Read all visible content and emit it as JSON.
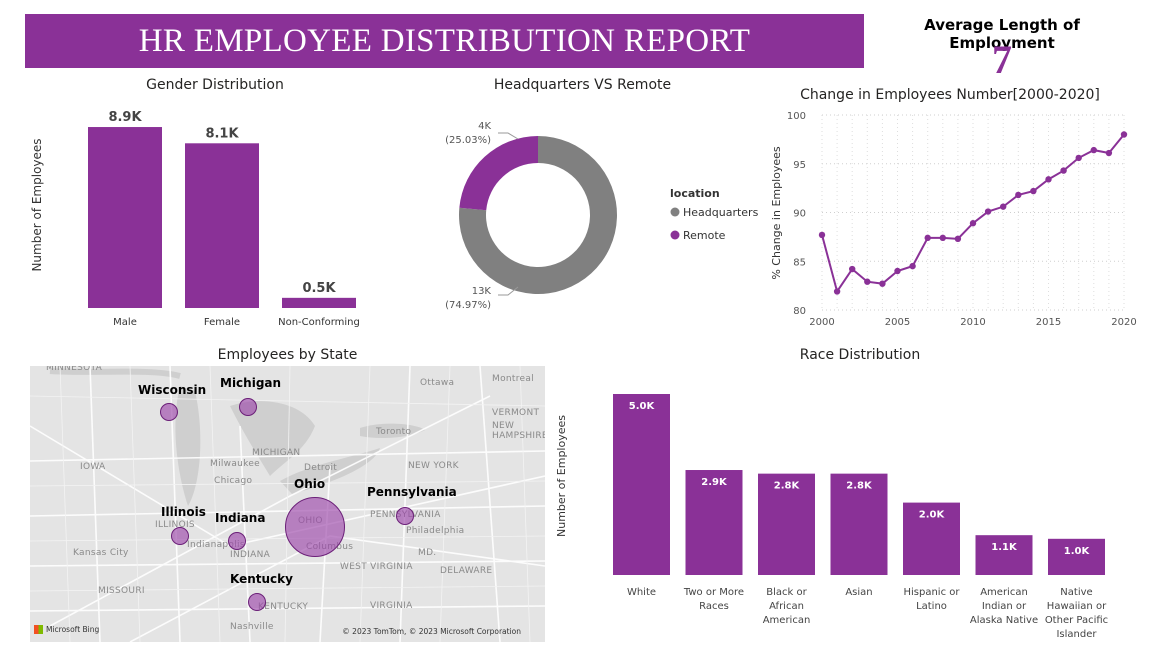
{
  "header": {
    "title": "HR EMPLOYEE DISTRIBUTION REPORT"
  },
  "kpi": {
    "label": "Average Length of Employment",
    "value": "7"
  },
  "colors": {
    "accent": "#8a3197",
    "secondary": "#808080"
  },
  "chart_data": [
    {
      "id": "gender",
      "type": "bar",
      "title": "Gender Distribution",
      "ylabel": "Number of Employees",
      "xlabel": "",
      "categories": [
        "Male",
        "Female",
        "Non-Conforming"
      ],
      "values": [
        8.9,
        8.1,
        0.5
      ],
      "data_labels": [
        "8.9K",
        "8.1K",
        "0.5K"
      ],
      "unit": "K"
    },
    {
      "id": "location",
      "type": "pie",
      "variant": "donut",
      "title": "Headquarters VS Remote",
      "legend_title": "location",
      "legend_position": "right",
      "slices": [
        {
          "name": "Headquarters",
          "value": 13,
          "label": "13K",
          "percent": "(74.97%)",
          "color": "#808080"
        },
        {
          "name": "Remote",
          "value": 4,
          "label": "4K",
          "percent": "(25.03%)",
          "color": "#8a3197"
        }
      ]
    },
    {
      "id": "change",
      "type": "line",
      "title": "Change in Employees Number[2000-2020]",
      "ylabel": "% Change in Employees",
      "xlabel": "",
      "x": [
        2000,
        2001,
        2002,
        2003,
        2004,
        2005,
        2006,
        2007,
        2008,
        2009,
        2010,
        2011,
        2012,
        2013,
        2014,
        2015,
        2016,
        2017,
        2018,
        2019,
        2020
      ],
      "y": [
        87.7,
        81.9,
        84.2,
        82.9,
        82.7,
        84.0,
        84.5,
        87.4,
        87.4,
        87.3,
        88.9,
        90.1,
        90.6,
        91.8,
        92.2,
        93.4,
        94.3,
        95.6,
        96.4,
        96.1,
        98.0
      ],
      "xlim": [
        2000,
        2020
      ],
      "ylim": [
        80,
        100
      ],
      "xticks": [
        2000,
        2005,
        2010,
        2015,
        2020
      ],
      "yticks": [
        80,
        85,
        90,
        95,
        100
      ],
      "grid": true
    },
    {
      "id": "race",
      "type": "bar",
      "title": "Race Distribution",
      "ylabel": "Number of Employees",
      "xlabel": "",
      "categories": [
        [
          "White"
        ],
        [
          "Two or More",
          "Races"
        ],
        [
          "Black or",
          "African",
          "American"
        ],
        [
          "Asian"
        ],
        [
          "Hispanic or",
          "Latino"
        ],
        [
          "American",
          "Indian or",
          "Alaska Native"
        ],
        [
          "Native",
          "Hawaiian or",
          "Other Pacific",
          "Islander"
        ]
      ],
      "values": [
        5.0,
        2.9,
        2.8,
        2.8,
        2.0,
        1.1,
        1.0
      ],
      "data_labels": [
        "5.0K",
        "2.9K",
        "2.8K",
        "2.8K",
        "2.0K",
        "1.1K",
        "1.0K"
      ],
      "unit": "K"
    }
  ],
  "map": {
    "title": "Employees by State",
    "states": [
      {
        "name": "Wisconsin"
      },
      {
        "name": "Michigan"
      },
      {
        "name": "Ohio"
      },
      {
        "name": "Pennsylvania"
      },
      {
        "name": "Illinois"
      },
      {
        "name": "Indiana"
      },
      {
        "name": "Kentucky"
      }
    ],
    "base_labels": [
      "MINNESOTA",
      "Ottawa",
      "Montreal",
      "VERMONT",
      "NEW HAMPSHIRE",
      "Toronto",
      "MICHIGAN",
      "IOWA",
      "Milwaukee",
      "Detroit",
      "NEW YORK",
      "Chicago",
      "ILLINOIS",
      "Indianapolis",
      "OHIO",
      "PENNSYLVANIA",
      "Philadelphia",
      "Columbus",
      "MD.",
      "Kansas City",
      "INDIANA",
      "WEST VIRGINIA",
      "DELAWARE",
      "MISSOURI",
      "KENTUCKY",
      "VIRGINIA",
      "Nashville"
    ],
    "logo": "Microsoft Bing",
    "copyright": "© 2023 TomTom, © 2023 Microsoft Corporation"
  }
}
